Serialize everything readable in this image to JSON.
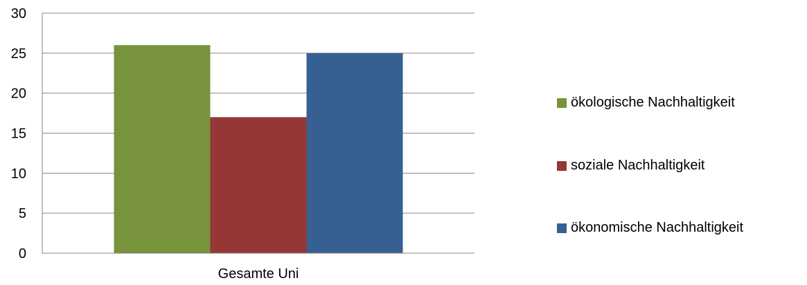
{
  "chart_data": {
    "type": "bar",
    "categories": [
      "Gesamte Uni"
    ],
    "series": [
      {
        "name": "ökologische Nachhaltigkeit",
        "values": [
          26
        ],
        "color": "#77933C"
      },
      {
        "name": "soziale Nachhaltigkeit",
        "values": [
          17
        ],
        "color": "#953735"
      },
      {
        "name": "ökonomische Nachhaltigkeit",
        "values": [
          25
        ],
        "color": "#376092"
      }
    ],
    "ylim": [
      0,
      30
    ],
    "yticks": [
      0,
      5,
      10,
      15,
      20,
      25,
      30
    ],
    "grid": true,
    "legend_position": "right",
    "title": "",
    "xlabel": "",
    "ylabel": ""
  }
}
